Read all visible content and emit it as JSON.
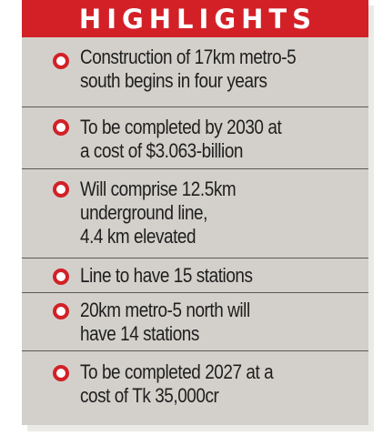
{
  "colors": {
    "header_bg": "#d32027",
    "panel_bg": "#d3d0cb",
    "bullet": "#d32027",
    "divider": "#5b5955",
    "text": "#1e1e1e"
  },
  "header": {
    "title": "HIGHLIGHTS"
  },
  "highlights": [
    {
      "lines": [
        "Construction of 17km metro-5",
        "south begins in four years"
      ]
    },
    {
      "lines": [
        "To be completed by 2030 at",
        "a cost of $3.063-billion"
      ]
    },
    {
      "lines": [
        "Will comprise 12.5km",
        "underground line,",
        "4.4 km elevated"
      ]
    },
    {
      "lines": [
        "Line to have 15 stations"
      ]
    },
    {
      "lines": [
        "20km metro-5 north will",
        "have 14 stations"
      ]
    },
    {
      "lines": [
        "To be completed 2027 at a",
        "cost of Tk 35,000cr"
      ]
    }
  ]
}
